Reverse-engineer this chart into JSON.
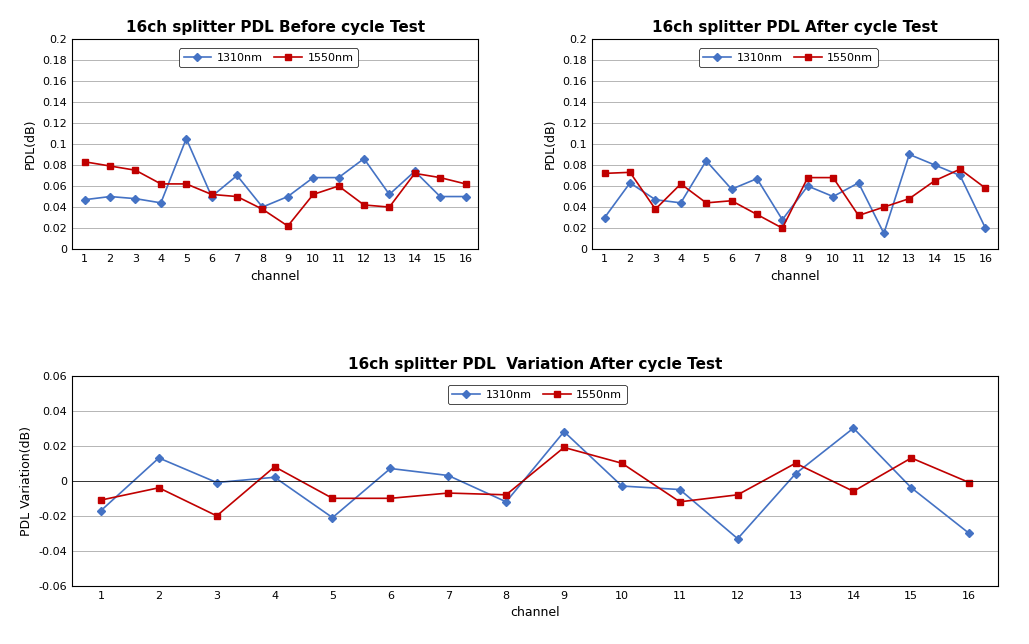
{
  "channels": [
    1,
    2,
    3,
    4,
    5,
    6,
    7,
    8,
    9,
    10,
    11,
    12,
    13,
    14,
    15,
    16
  ],
  "before_1310": [
    0.047,
    0.05,
    0.048,
    0.044,
    0.105,
    0.05,
    0.07,
    0.04,
    0.05,
    0.068,
    0.068,
    0.086,
    0.052,
    0.074,
    0.05,
    0.05
  ],
  "before_1550": [
    0.083,
    0.079,
    0.075,
    0.062,
    0.062,
    0.052,
    0.05,
    0.038,
    0.022,
    0.052,
    0.06,
    0.042,
    0.04,
    0.072,
    0.068,
    0.062
  ],
  "after_1310": [
    0.03,
    0.063,
    0.047,
    0.044,
    0.084,
    0.057,
    0.067,
    0.028,
    0.06,
    0.05,
    0.063,
    0.015,
    0.09,
    0.08,
    0.07,
    0.02
  ],
  "after_1550": [
    0.072,
    0.073,
    0.038,
    0.062,
    0.044,
    0.046,
    0.033,
    0.02,
    0.068,
    0.068,
    0.032,
    0.04,
    0.048,
    0.065,
    0.076,
    0.058
  ],
  "var_1310": [
    -0.017,
    0.013,
    -0.001,
    0.002,
    -0.021,
    0.007,
    0.003,
    -0.012,
    0.028,
    -0.003,
    -0.005,
    -0.033,
    0.004,
    0.03,
    -0.004,
    -0.03
  ],
  "var_1550": [
    -0.011,
    -0.004,
    -0.02,
    0.008,
    -0.01,
    -0.01,
    -0.007,
    -0.008,
    0.019,
    0.01,
    -0.012,
    -0.008,
    0.01,
    -0.006,
    0.013,
    -0.001
  ],
  "color_1310": "#4472C4",
  "color_1550": "#C00000",
  "bg_color": "#FFFFFF",
  "title_before": "16ch splitter PDL Before cycle Test",
  "title_after": "16ch splitter PDL After cycle Test",
  "title_var": "16ch splitter PDL  Variation After cycle Test",
  "ylabel_pdl": "PDL(dB)",
  "ylabel_var": "PDL Variation(dB)",
  "xlabel": "channel",
  "ylim_pdl": [
    0,
    0.2
  ],
  "ylim_var": [
    -0.06,
    0.06
  ],
  "yticks_pdl": [
    0,
    0.02,
    0.04,
    0.06,
    0.08,
    0.1,
    0.12,
    0.14,
    0.16,
    0.18,
    0.2
  ],
  "yticks_var": [
    -0.06,
    -0.04,
    -0.02,
    0,
    0.02,
    0.04,
    0.06
  ],
  "legend_1310": "1310nm",
  "legend_1550": "1550nm"
}
